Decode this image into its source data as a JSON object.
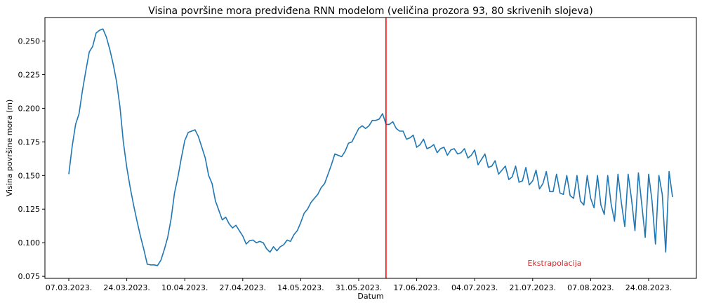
{
  "chart_data": {
    "type": "line",
    "title": "Visina površine mora predviđena RNN modelom (veličina prozora 93, 80 skrivenih slojeva)",
    "xlabel": "Datum",
    "ylabel": "Visina površine mora (m)",
    "x_start_label": "07.03.2023.",
    "x_ticks": [
      "07.03.2023.",
      "24.03.2023.",
      "10.04.2023.",
      "27.04.2023.",
      "14.05.2023.",
      "31.05.2023.",
      "17.06.2023.",
      "04.07.2023.",
      "21.07.2023.",
      "07.08.2023.",
      "24.08.2023."
    ],
    "y_ticks": [
      "0.075",
      "0.100",
      "0.125",
      "0.150",
      "0.175",
      "0.200",
      "0.225",
      "0.250"
    ],
    "ylim": [
      0.0735,
      0.2675
    ],
    "xlim_days": [
      -7,
      184
    ],
    "grid": false,
    "line_color": "#1f77b4",
    "marker_color": "#ff0000",
    "marker_day": 93,
    "annotation": {
      "text": "Ekstrapolacija",
      "color": "#d62728"
    },
    "series": [
      {
        "values": [
          0.151,
          0.172,
          0.188,
          0.196,
          0.213,
          0.228,
          0.242,
          0.246,
          0.256,
          0.258,
          0.259,
          0.253,
          0.244,
          0.233,
          0.22,
          0.201,
          0.175,
          0.156,
          0.141,
          0.128,
          0.116,
          0.105,
          0.095,
          0.084,
          0.0835,
          0.0835,
          0.083,
          0.087,
          0.095,
          0.104,
          0.118,
          0.137,
          0.149,
          0.163,
          0.176,
          0.182,
          0.183,
          0.184,
          0.179,
          0.171,
          0.163,
          0.15,
          0.144,
          0.131,
          0.124,
          0.117,
          0.119,
          0.114,
          0.111,
          0.113,
          0.109,
          0.105,
          0.099,
          0.1015,
          0.102,
          0.1,
          0.101,
          0.1,
          0.0955,
          0.093,
          0.097,
          0.094,
          0.097,
          0.0985,
          0.102,
          0.101,
          0.106,
          0.109,
          0.115,
          0.122,
          0.125,
          0.13,
          0.133,
          0.136,
          0.141,
          0.144,
          0.151,
          0.158,
          0.166,
          0.165,
          0.164,
          0.168,
          0.174,
          0.175,
          0.18,
          0.185,
          0.187,
          0.185,
          0.187,
          0.191,
          0.191,
          0.192,
          0.196,
          0.188,
          0.188,
          0.19,
          0.185,
          0.183,
          0.183,
          0.177,
          0.178,
          0.18,
          0.171,
          0.173,
          0.177,
          0.17,
          0.171,
          0.173,
          0.167,
          0.17,
          0.171,
          0.165,
          0.169,
          0.17,
          0.166,
          0.167,
          0.17,
          0.163,
          0.165,
          0.169,
          0.158,
          0.162,
          0.166,
          0.156,
          0.157,
          0.161,
          0.151,
          0.154,
          0.157,
          0.147,
          0.149,
          0.157,
          0.145,
          0.146,
          0.156,
          0.143,
          0.146,
          0.154,
          0.14,
          0.144,
          0.153,
          0.138,
          0.138,
          0.151,
          0.137,
          0.136,
          0.15,
          0.135,
          0.133,
          0.15,
          0.131,
          0.128,
          0.15,
          0.133,
          0.126,
          0.15,
          0.128,
          0.121,
          0.15,
          0.129,
          0.116,
          0.151,
          0.13,
          0.112,
          0.151,
          0.132,
          0.109,
          0.152,
          0.128,
          0.104,
          0.151,
          0.131,
          0.099,
          0.15,
          0.136,
          0.093,
          0.153,
          0.134
        ]
      }
    ]
  }
}
